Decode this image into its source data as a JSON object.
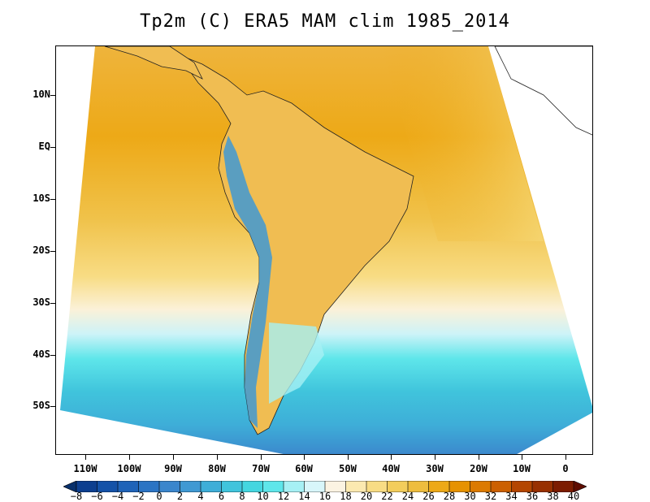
{
  "title": "Tp2m (C) ERA5 MAM clim 1985_2014",
  "lat_labels": [
    "10N",
    "EQ",
    "10S",
    "20S",
    "30S",
    "40S",
    "50S"
  ],
  "lon_labels": [
    "110W",
    "100W",
    "90W",
    "80W",
    "70W",
    "60W",
    "50W",
    "40W",
    "30W",
    "20W",
    "10W",
    "0"
  ],
  "colorbar": {
    "labels": [
      "-8",
      "-6",
      "-4",
      "-2",
      "0",
      "2",
      "4",
      "6",
      "8",
      "10",
      "12",
      "14",
      "16",
      "18",
      "20",
      "22",
      "24",
      "26",
      "28",
      "30",
      "32",
      "34",
      "36",
      "38",
      "40"
    ],
    "colors": [
      "#08306b",
      "#0d3f8f",
      "#1452a8",
      "#1f63b8",
      "#2b74c4",
      "#3b86cc",
      "#3f99d3",
      "#3eaed8",
      "#40c4dc",
      "#44d6e0",
      "#5ee6ea",
      "#a6f0f4",
      "#d8f6fa",
      "#fbf3e2",
      "#fbe9b0",
      "#f8dc84",
      "#f3cd5c",
      "#eebd3e",
      "#eda917",
      "#e69200",
      "#dc7a00",
      "#cc6000",
      "#b44600",
      "#983000",
      "#7c1c00",
      "#5e0c00"
    ]
  }
}
